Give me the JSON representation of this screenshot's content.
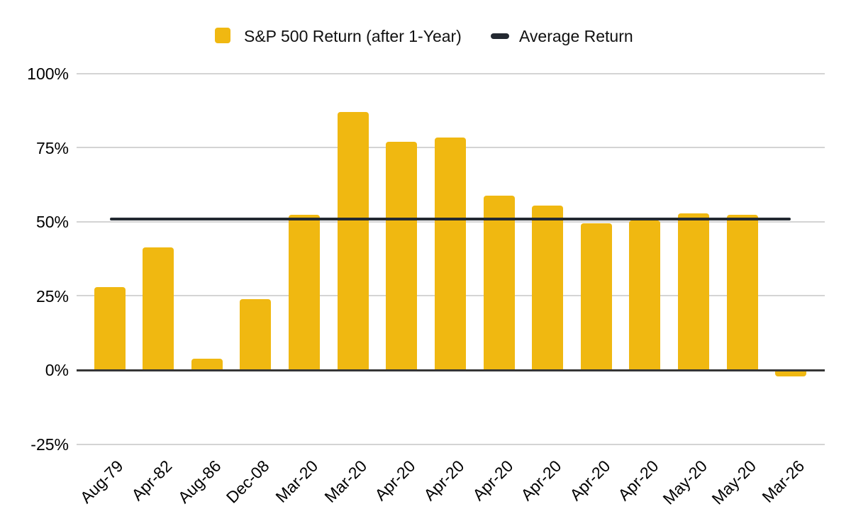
{
  "chart_data": {
    "type": "bar",
    "title": "",
    "categories": [
      "Aug-79",
      "Apr-82",
      "Aug-86",
      "Dec-08",
      "Mar-20",
      "Mar-20",
      "Apr-20",
      "Apr-20",
      "Apr-20",
      "Apr-20",
      "Apr-20",
      "Apr-20",
      "May-20",
      "May-20",
      "Mar-26"
    ],
    "series": [
      {
        "name": "S&P 500 Return (after 1-Year)",
        "type": "bar",
        "color": "#F0B811",
        "values": [
          28,
          41.5,
          4,
          24,
          52.5,
          87,
          77,
          78.5,
          59,
          55.5,
          49.5,
          50.5,
          53,
          52.5,
          -2
        ]
      },
      {
        "name": "Average Return",
        "type": "line",
        "color": "#232931",
        "value": 51
      }
    ],
    "ylim": [
      -25,
      100
    ],
    "yticks": [
      100,
      75,
      50,
      25,
      0,
      -25
    ],
    "ytick_labels": [
      "100%",
      "75%",
      "50%",
      "25%",
      "0%",
      "-25%"
    ],
    "xlabel": "",
    "ylabel": "",
    "grid": true,
    "legend_position": "top",
    "colors": {
      "gridline": "#d4d4d4",
      "zero_axis": "#363636",
      "text": "#000000",
      "background": "#ffffff"
    }
  }
}
